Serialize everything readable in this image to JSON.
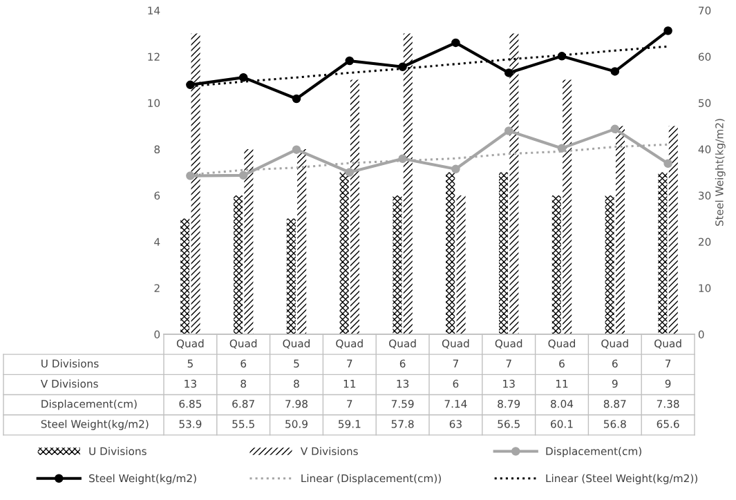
{
  "chart_data": {
    "type": "bar",
    "categories": [
      "Quad",
      "Quad",
      "Quad",
      "Quad",
      "Quad",
      "Quad",
      "Quad",
      "Quad",
      "Quad",
      "Quad"
    ],
    "series": [
      {
        "name": "U Divisions",
        "color": "#000000",
        "values": [
          5,
          6,
          5,
          7,
          6,
          7,
          7,
          6,
          6,
          7
        ],
        "value_labels": [
          "5",
          "6",
          "5",
          "7",
          "6",
          "7",
          "7",
          "6",
          "6",
          "7"
        ]
      },
      {
        "name": "V Divisions",
        "color": "#000000",
        "values": [
          13,
          8,
          8,
          11,
          13,
          6,
          13,
          11,
          9,
          9
        ],
        "value_labels": [
          "13",
          "8",
          "8",
          "11",
          "13",
          "6",
          "13",
          "11",
          "9",
          "9"
        ]
      },
      {
        "name": "Displacement(cm)",
        "type": "line",
        "color": "#a5a5a5",
        "marker": "circle",
        "values": [
          6.85,
          6.87,
          7.98,
          7,
          7.59,
          7.14,
          8.79,
          8.04,
          8.87,
          7.38
        ],
        "value_labels": [
          "6.85",
          "6.87",
          "7.98",
          "7",
          "7.59",
          "7.14",
          "8.79",
          "8.04",
          "8.87",
          "7.38"
        ]
      },
      {
        "name": "Steel Weight(kg/m2)",
        "type": "line",
        "axis": "y2",
        "color": "#000000",
        "marker": "circle",
        "values": [
          53.9,
          55.5,
          50.9,
          59.1,
          57.8,
          63,
          56.5,
          60.1,
          56.8,
          65.6
        ],
        "value_labels": [
          "53.9",
          "55.5",
          "50.9",
          "59.1",
          "57.8",
          "63",
          "56.5",
          "60.1",
          "56.8",
          "65.6"
        ]
      },
      {
        "name": "Linear (Displacement(cm))",
        "type": "line",
        "color": "#a5a5a5",
        "line_style": "dotted",
        "values": [
          6.9,
          7.1,
          7.2,
          7.4,
          7.5,
          7.6,
          7.8,
          7.9,
          8.1,
          8.2
        ]
      },
      {
        "name": "Linear (Steel Weight(kg/m2))",
        "type": "line",
        "axis": "y2",
        "color": "#000000",
        "line_style": "dotted",
        "values": [
          53.6,
          54.6,
          55.5,
          56.5,
          57.4,
          58.4,
          59.4,
          60.3,
          61.3,
          62.2
        ]
      }
    ],
    "ylim": [
      0,
      14
    ],
    "yticks": [
      0,
      2,
      4,
      6,
      8,
      10,
      12,
      14
    ],
    "y2lim": [
      0,
      70
    ],
    "y2ticks": [
      0,
      10,
      20,
      30,
      40,
      50,
      60,
      70
    ],
    "y2label": "Steel Weight(kg/m2)",
    "grid": false,
    "legend": "bottom"
  }
}
